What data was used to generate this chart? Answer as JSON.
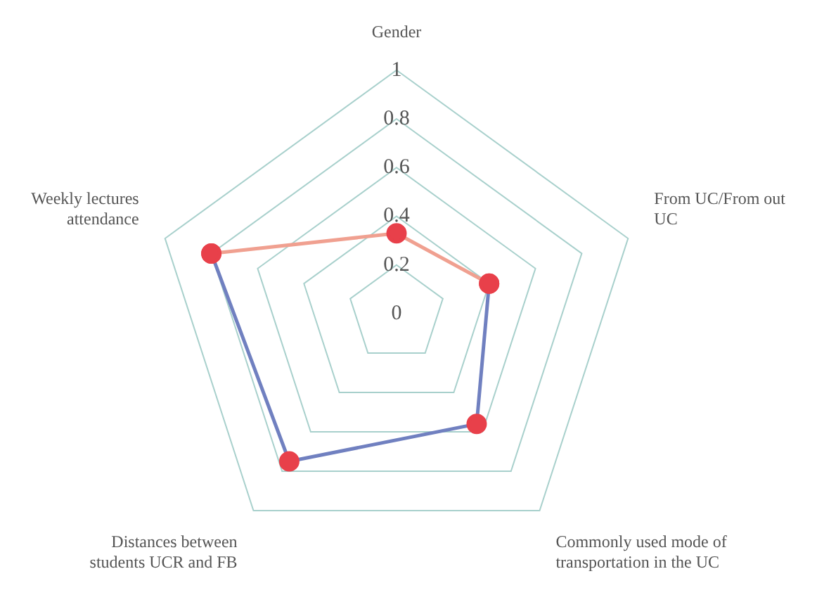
{
  "chart_data": {
    "type": "radar",
    "categories": [
      "Gender",
      "From UC/From out UC",
      "Commonly used mode of transportation in the UC",
      "Distances between students UCR and FB",
      "Weekly lectures attendance"
    ],
    "series": [
      {
        "color": "#f0a090",
        "colors": [
          "#e8404a",
          "#e8404a",
          null,
          null,
          "#e8404a"
        ],
        "values": [
          0.33,
          0.4,
          null,
          null,
          0.8
        ]
      },
      {
        "color": "#7080c0",
        "colors": [
          null,
          "#e8404a",
          "#e8404a",
          "#e8404a",
          "#e8404a"
        ],
        "values": [
          null,
          0.4,
          0.56,
          0.75,
          0.8
        ]
      }
    ],
    "ylim": [
      0,
      1
    ],
    "yticks": [
      0,
      0.2,
      0.4,
      0.6,
      0.8,
      1
    ],
    "grid": true,
    "legend": false,
    "marker": "circle"
  }
}
